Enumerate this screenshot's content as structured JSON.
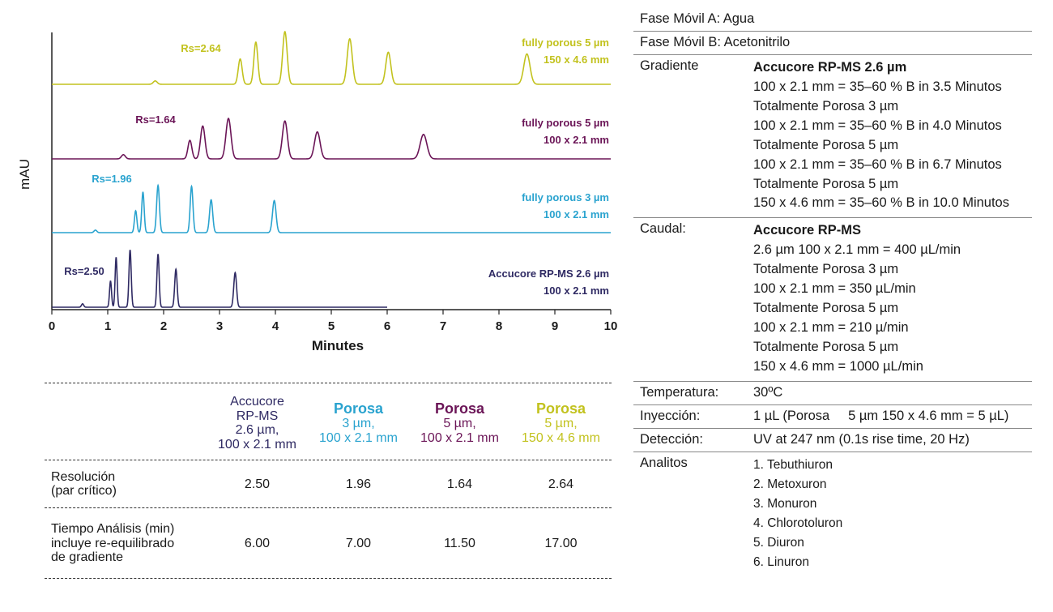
{
  "chart_data": {
    "type": "line",
    "xlabel": "Minutes",
    "ylabel": "mAU",
    "xlim": [
      0,
      10
    ],
    "x_ticks": [
      "0",
      "1",
      "2",
      "3",
      "4",
      "5",
      "6",
      "7",
      "8",
      "9",
      "10"
    ],
    "traces": [
      {
        "label_lines": [
          "fully porous 5 µm",
          "150 x 4.6 mm"
        ],
        "rs": "Rs=2.64",
        "color": "#c2c21e",
        "end_x": 10,
        "peaks": [
          {
            "x": 1.85,
            "h": 0.08,
            "w": 0.035
          },
          {
            "x": 3.37,
            "h": 0.6,
            "w": 0.035
          },
          {
            "x": 3.65,
            "h": 1.0,
            "w": 0.035
          },
          {
            "x": 4.17,
            "h": 1.25,
            "w": 0.04
          },
          {
            "x": 5.33,
            "h": 1.08,
            "w": 0.045
          },
          {
            "x": 6.02,
            "h": 0.76,
            "w": 0.045
          },
          {
            "x": 8.5,
            "h": 0.72,
            "w": 0.055
          }
        ]
      },
      {
        "label_lines": [
          "fully porous 5 µm",
          "100 x 2.1 mm"
        ],
        "rs": "Rs=1.64",
        "color": "#6b1557",
        "end_x": 10,
        "peaks": [
          {
            "x": 1.28,
            "h": 0.1,
            "w": 0.035
          },
          {
            "x": 2.47,
            "h": 0.44,
            "w": 0.035
          },
          {
            "x": 2.7,
            "h": 0.78,
            "w": 0.04
          },
          {
            "x": 3.16,
            "h": 0.96,
            "w": 0.045
          },
          {
            "x": 4.17,
            "h": 0.9,
            "w": 0.045
          },
          {
            "x": 4.75,
            "h": 0.64,
            "w": 0.05
          },
          {
            "x": 6.65,
            "h": 0.58,
            "w": 0.06
          }
        ]
      },
      {
        "label_lines": [
          "fully porous 3 µm",
          "100 x 2.1 mm"
        ],
        "rs": "Rs=1.96",
        "color": "#2aa3cf",
        "end_x": 10,
        "peaks": [
          {
            "x": 0.78,
            "h": 0.06,
            "w": 0.025
          },
          {
            "x": 1.5,
            "h": 0.52,
            "w": 0.022
          },
          {
            "x": 1.63,
            "h": 0.96,
            "w": 0.022
          },
          {
            "x": 1.9,
            "h": 1.12,
            "w": 0.025
          },
          {
            "x": 2.5,
            "h": 1.1,
            "w": 0.025
          },
          {
            "x": 2.85,
            "h": 0.78,
            "w": 0.028
          },
          {
            "x": 3.98,
            "h": 0.76,
            "w": 0.032
          }
        ]
      },
      {
        "label_lines": [
          "Accucore RP-MS 2.6 µm",
          "100 x 2.1 mm"
        ],
        "rs": "Rs=2.50",
        "color": "#2f2a63",
        "end_x": 6,
        "peaks": [
          {
            "x": 0.55,
            "h": 0.08,
            "w": 0.02
          },
          {
            "x": 1.05,
            "h": 0.62,
            "w": 0.018
          },
          {
            "x": 1.15,
            "h": 1.18,
            "w": 0.018
          },
          {
            "x": 1.4,
            "h": 1.36,
            "w": 0.02
          },
          {
            "x": 1.9,
            "h": 1.26,
            "w": 0.02
          },
          {
            "x": 2.22,
            "h": 0.9,
            "w": 0.022
          },
          {
            "x": 3.28,
            "h": 0.82,
            "w": 0.025
          }
        ]
      }
    ]
  },
  "comparison": {
    "columns": [
      {
        "name": "Accucore",
        "desc": "RP-MS\n2.6 µm,\n100 x 2.1 mm",
        "color": "#2f2a63"
      },
      {
        "name": "Porosa",
        "desc": "3 µm,\n100 x 2.1 mm",
        "color": "#2aa3cf"
      },
      {
        "name": "Porosa",
        "desc": "5 µm,\n100 x 2.1 mm",
        "color": "#6b1557"
      },
      {
        "name": "Porosa",
        "desc": "5 µm,\n150 x 4.6 mm",
        "color": "#c2c21e"
      }
    ],
    "rows": [
      {
        "label": "Resolución\n(par crítico)",
        "values": [
          "2.50",
          "1.96",
          "1.64",
          "2.64"
        ]
      },
      {
        "label": "Tiempo Análisis (min)\nincluye re-equilibrado\nde gradiente",
        "values": [
          "6.00",
          "7.00",
          "11.50",
          "17.00"
        ]
      }
    ]
  },
  "conditions": {
    "mobile_a": "Fase Móvil A: Agua",
    "mobile_b": "Fase Móvil B: Acetonitrilo",
    "gradient": {
      "key": "Gradiente",
      "lines": [
        {
          "text": "Accucore RP-MS 2.6 µm",
          "bold": true
        },
        {
          "text": "100 x 2.1 mm = 35–60 % B in 3.5 Minutos",
          "bold": false
        },
        {
          "text": "Totalmente Porosa 3 µm",
          "bold": false
        },
        {
          "text": "100 x 2.1 mm = 35–60 % B in 4.0 Minutos",
          "bold": false
        },
        {
          "text": "Totalmente Porosa 5 µm",
          "bold": false
        },
        {
          "text": "100 x 2.1 mm = 35–60 % B in 6.7 Minutos",
          "bold": false
        },
        {
          "text": "Totalmente Porosa 5 µm",
          "bold": false
        },
        {
          "text": "150 x 4.6 mm = 35–60 % B in 10.0 Minutos",
          "bold": false
        }
      ]
    },
    "flow": {
      "key": "Caudal:",
      "lines": [
        {
          "text": "Accucore RP-MS",
          "bold": true
        },
        {
          "text": "2.6 µm 100 x 2.1 mm = 400 µL/min",
          "bold": false
        },
        {
          "text": "Totalmente Porosa 3 µm",
          "bold": false
        },
        {
          "text": "100 x 2.1 mm = 350 µL/min",
          "bold": false
        },
        {
          "text": "Totalmente Porosa 5 µm",
          "bold": false
        },
        {
          "text": "100 x 2.1 mm = 210 µ/min",
          "bold": false
        },
        {
          "text": "Totalmente Porosa 5 µm",
          "bold": false
        },
        {
          "text": "150 x 4.6 mm = 1000 µL/min",
          "bold": false
        }
      ]
    },
    "temperature": {
      "key": "Temperatura:",
      "value": "30ºC"
    },
    "injection": {
      "key": "Inyección:",
      "value": "1 µL (Porosa     5 µm 150 x 4.6 mm = 5 µL)"
    },
    "detection": {
      "key": "Detección:",
      "value": "UV at 247 nm (0.1s rise time, 20 Hz)"
    },
    "analytes": {
      "key": "Analitos",
      "items": [
        "1. Tebuthiuron",
        "2. Metoxuron",
        "3. Monuron",
        "4. Chlorotoluron",
        "5. Diuron",
        "6. Linuron"
      ]
    }
  }
}
